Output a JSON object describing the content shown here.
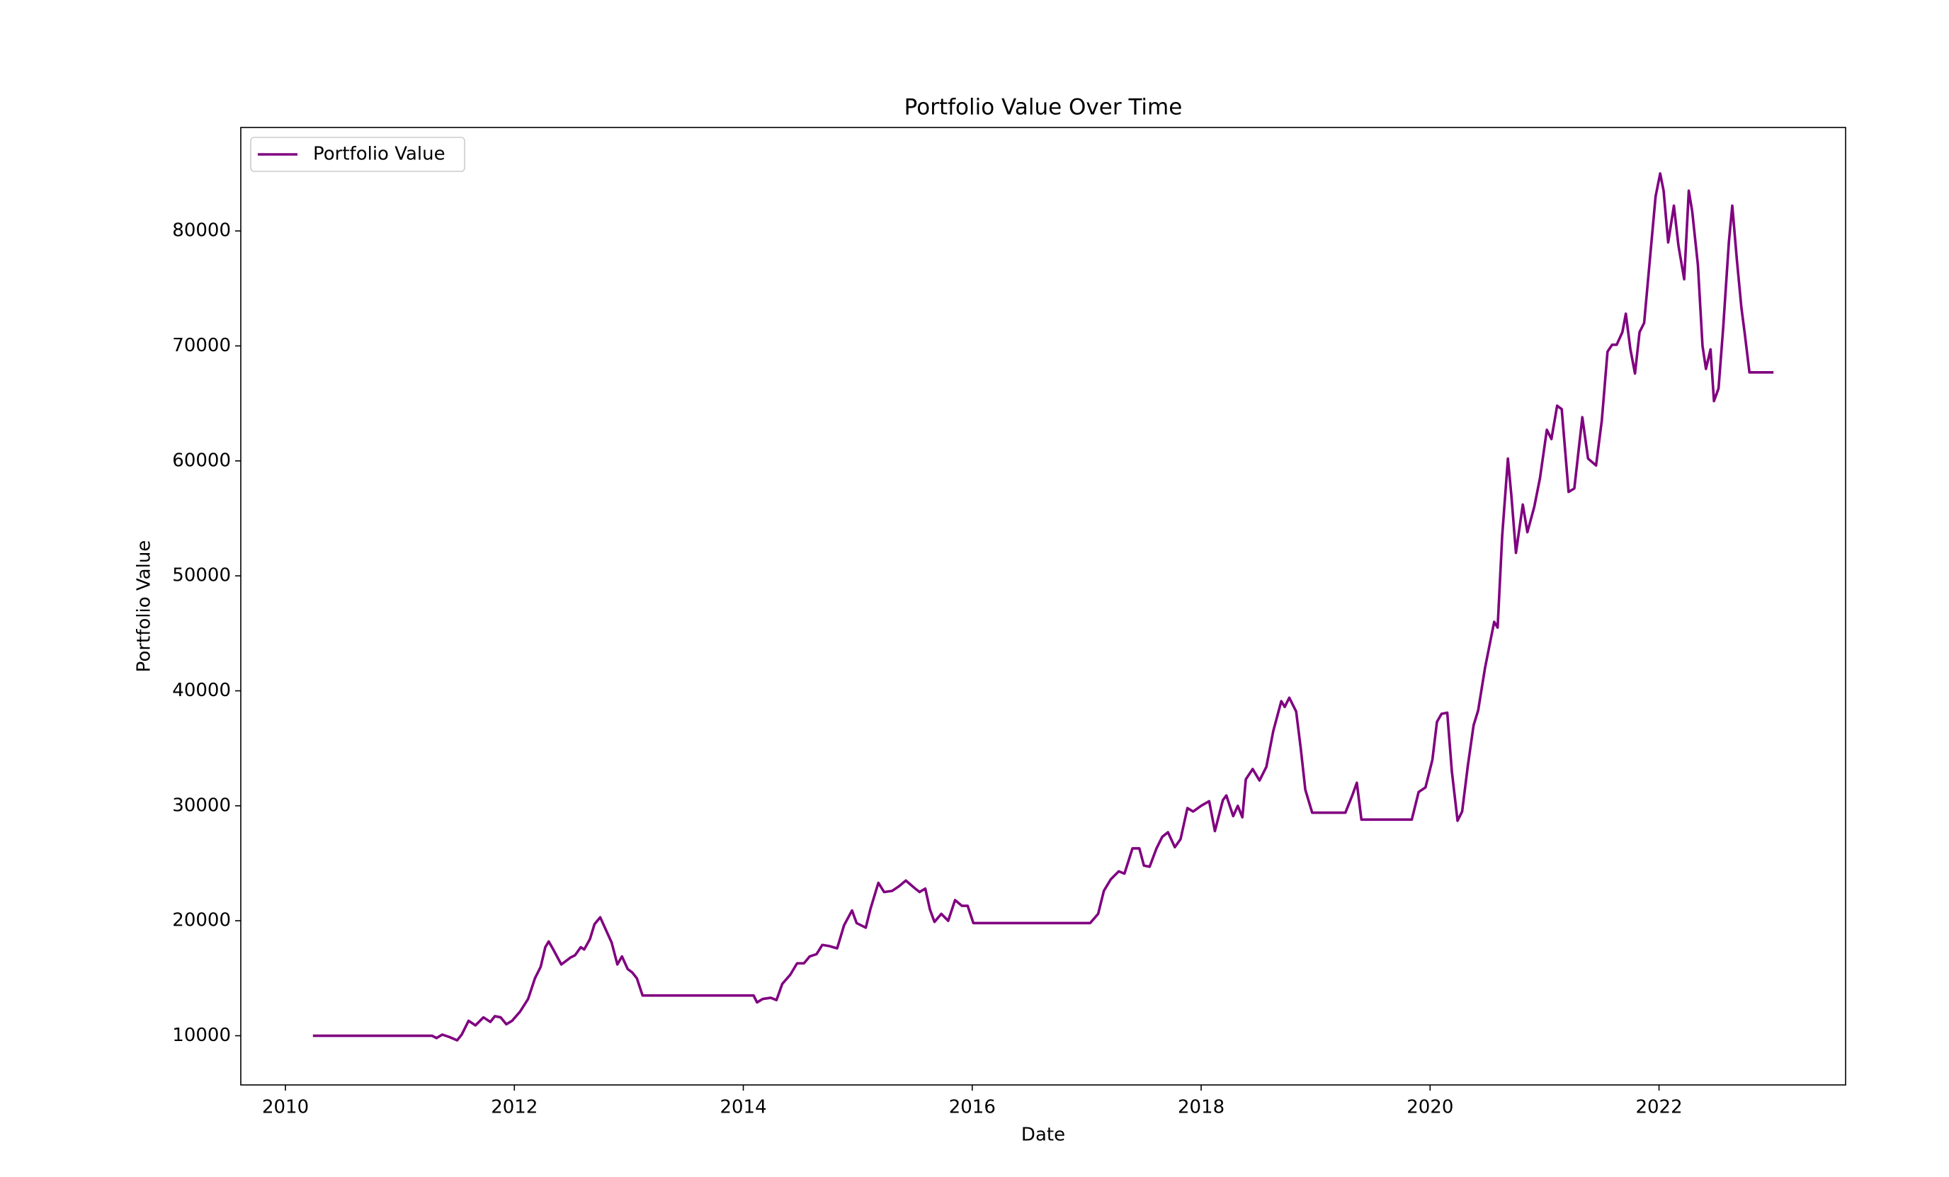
{
  "chart_data": {
    "type": "line",
    "title": "Portfolio Value Over Time",
    "xlabel": "Date",
    "ylabel": "Portfolio Value",
    "legend": "upper left",
    "xlim": [
      2009.61,
      2023.63
    ],
    "xticks": [
      2010,
      2012,
      2014,
      2016,
      2018,
      2020,
      2022
    ],
    "ylim": [
      5721,
      89000
    ],
    "yticks": [
      10000,
      20000,
      30000,
      40000,
      50000,
      60000,
      70000,
      80000
    ],
    "series": [
      {
        "name": "Portfolio Value",
        "color": "#800080",
        "x": [
          2010.24,
          2011.28,
          2011.32,
          2011.37,
          2011.43,
          2011.5,
          2011.54,
          2011.6,
          2011.66,
          2011.73,
          2011.79,
          2011.83,
          2011.88,
          2011.93,
          2011.98,
          2012.05,
          2012.12,
          2012.18,
          2012.23,
          2012.27,
          2012.3,
          2012.34,
          2012.41,
          2012.49,
          2012.53,
          2012.58,
          2012.61,
          2012.66,
          2012.7,
          2012.75,
          2012.8,
          2012.85,
          2012.9,
          2012.94,
          2012.99,
          2013.03,
          2013.07,
          2013.12,
          2014.09,
          2014.12,
          2014.17,
          2014.24,
          2014.29,
          2014.34,
          2014.41,
          2014.47,
          2014.53,
          2014.58,
          2014.64,
          2014.69,
          2014.75,
          2014.82,
          2014.88,
          2014.95,
          2014.99,
          2015.07,
          2015.11,
          2015.18,
          2015.23,
          2015.3,
          2015.36,
          2015.42,
          2015.49,
          2015.54,
          2015.59,
          2015.63,
          2015.67,
          2015.73,
          2015.79,
          2015.85,
          2015.91,
          2015.96,
          2016.01,
          2017.03,
          2017.1,
          2017.15,
          2017.21,
          2017.28,
          2017.33,
          2017.4,
          2017.46,
          2017.5,
          2017.55,
          2017.61,
          2017.66,
          2017.71,
          2017.77,
          2017.82,
          2017.88,
          2017.93,
          2018.0,
          2018.07,
          2018.12,
          2018.19,
          2018.22,
          2018.28,
          2018.32,
          2018.36,
          2018.39,
          2018.45,
          2018.51,
          2018.57,
          2018.63,
          2018.7,
          2018.73,
          2018.77,
          2018.83,
          2018.87,
          2018.91,
          2018.97,
          2019.26,
          2019.32,
          2019.36,
          2019.4,
          2019.84,
          2019.9,
          2019.96,
          2020.02,
          2020.06,
          2020.1,
          2020.15,
          2020.19,
          2020.24,
          2020.28,
          2020.33,
          2020.38,
          2020.42,
          2020.48,
          2020.52,
          2020.56,
          2020.59,
          2020.63,
          2020.68,
          2020.71,
          2020.75,
          2020.81,
          2020.85,
          2020.91,
          2020.96,
          2021.02,
          2021.06,
          2021.11,
          2021.15,
          2021.21,
          2021.26,
          2021.33,
          2021.38,
          2021.45,
          2021.5,
          2021.55,
          2021.59,
          2021.63,
          2021.68,
          2021.71,
          2021.75,
          2021.79,
          2021.83,
          2021.87,
          2021.92,
          2021.97,
          2022.01,
          2022.04,
          2022.08,
          2022.13,
          2022.17,
          2022.22,
          2022.26,
          2022.29,
          2022.34,
          2022.38,
          2022.41,
          2022.45,
          2022.48,
          2022.52,
          2022.56,
          2022.61,
          2022.64,
          2022.68,
          2022.72,
          2022.75,
          2022.79,
          2023.0
        ],
        "values": [
          10000,
          10000,
          9800,
          10100,
          9900,
          9600,
          10100,
          11300,
          10900,
          11600,
          11200,
          11700,
          11600,
          11000,
          11300,
          12100,
          13200,
          15000,
          16000,
          17700,
          18200,
          17500,
          16200,
          16800,
          17000,
          17700,
          17500,
          18400,
          19700,
          20300,
          19200,
          18100,
          16200,
          16900,
          15800,
          15500,
          15000,
          13500,
          13500,
          12900,
          13200,
          13300,
          13100,
          14500,
          15300,
          16300,
          16300,
          16900,
          17100,
          17900,
          17800,
          17600,
          19600,
          20900,
          19800,
          19400,
          21000,
          23300,
          22500,
          22600,
          23000,
          23500,
          22900,
          22500,
          22800,
          21000,
          19900,
          20600,
          20000,
          21800,
          21300,
          21300,
          19800,
          19800,
          20600,
          22600,
          23600,
          24300,
          24100,
          26300,
          26300,
          24800,
          24700,
          26300,
          27300,
          27700,
          26400,
          27100,
          29800,
          29500,
          30000,
          30400,
          27800,
          30500,
          30900,
          29100,
          30000,
          29000,
          32300,
          33200,
          32200,
          33400,
          36500,
          39100,
          38600,
          39400,
          38200,
          35000,
          31400,
          29400,
          29400,
          30900,
          32000,
          28800,
          28800,
          31200,
          31600,
          34000,
          37300,
          38000,
          38100,
          33000,
          28700,
          29500,
          33500,
          37000,
          38300,
          42000,
          44000,
          46000,
          45500,
          53500,
          60200,
          57000,
          52000,
          56200,
          53800,
          56000,
          58500,
          62700,
          61900,
          64800,
          64500,
          57300,
          57600,
          63800,
          60200,
          59600,
          63500,
          69500,
          70100,
          70100,
          71200,
          72800,
          69700,
          67600,
          71200,
          72000,
          77500,
          83000,
          85000,
          83500,
          79000,
          82200,
          78700,
          75800,
          83500,
          81700,
          77000,
          70000,
          68000,
          69700,
          65200,
          66300,
          71500,
          79000,
          82200,
          77500,
          73300,
          71000,
          67700,
          67700
        ]
      }
    ]
  }
}
